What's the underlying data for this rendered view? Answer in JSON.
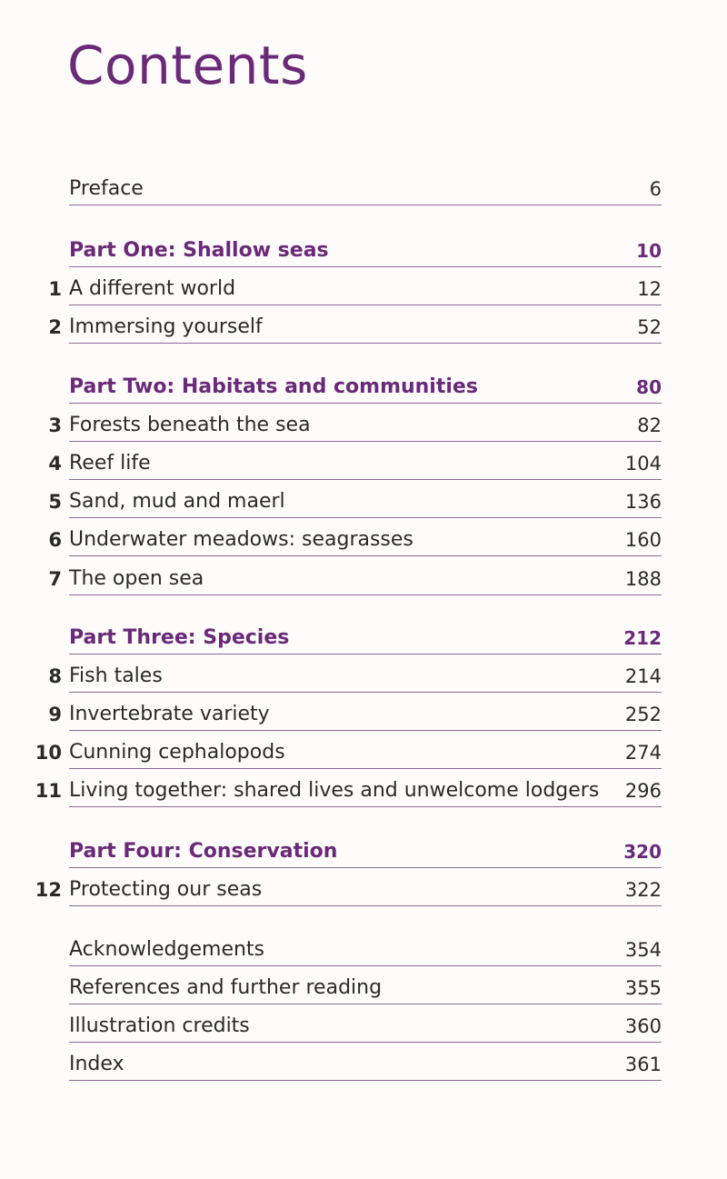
{
  "page_title": "Contents",
  "entries": [
    {
      "kind": "front",
      "num": "",
      "label": "Preface",
      "page": "6"
    },
    {
      "kind": "part",
      "num": "",
      "label": "Part One: Shallow seas",
      "page": "10"
    },
    {
      "kind": "chapter",
      "num": "1",
      "label": "A different world",
      "page": "12"
    },
    {
      "kind": "chapter",
      "num": "2",
      "label": "Immersing yourself",
      "page": "52"
    },
    {
      "kind": "part",
      "num": "",
      "label": "Part Two: Habitats and communities",
      "page": "80"
    },
    {
      "kind": "chapter",
      "num": "3",
      "label": "Forests beneath the sea",
      "page": "82"
    },
    {
      "kind": "chapter",
      "num": "4",
      "label": "Reef life",
      "page": "104"
    },
    {
      "kind": "chapter",
      "num": "5",
      "label": "Sand, mud and maerl",
      "page": "136"
    },
    {
      "kind": "chapter",
      "num": "6",
      "label": "Underwater meadows: seagrasses",
      "page": "160"
    },
    {
      "kind": "chapter",
      "num": "7",
      "label": "The open sea",
      "page": "188"
    },
    {
      "kind": "part",
      "num": "",
      "label": "Part Three: Species",
      "page": "212"
    },
    {
      "kind": "chapter",
      "num": "8",
      "label": "Fish tales",
      "page": "214"
    },
    {
      "kind": "chapter",
      "num": "9",
      "label": "Invertebrate variety",
      "page": "252"
    },
    {
      "kind": "chapter",
      "num": "10",
      "label": "Cunning cephalopods",
      "page": "274"
    },
    {
      "kind": "chapter",
      "num": "11",
      "label": "Living together: shared lives and unwelcome lodgers",
      "page": "296"
    },
    {
      "kind": "part",
      "num": "",
      "label": "Part Four: Conservation",
      "page": "320"
    },
    {
      "kind": "chapter",
      "num": "12",
      "label": "Protecting our seas",
      "page": "322"
    },
    {
      "kind": "back",
      "num": "",
      "label": "Acknowledgements",
      "page": "354"
    },
    {
      "kind": "back",
      "num": "",
      "label": "References and further reading",
      "page": "355"
    },
    {
      "kind": "back",
      "num": "",
      "label": "Illustration credits",
      "page": "360"
    },
    {
      "kind": "back",
      "num": "",
      "label": "Index",
      "page": "361"
    }
  ],
  "colors": {
    "accent": "#6a2a78",
    "rule": "#8e6a98",
    "text": "#2a2a2a"
  }
}
